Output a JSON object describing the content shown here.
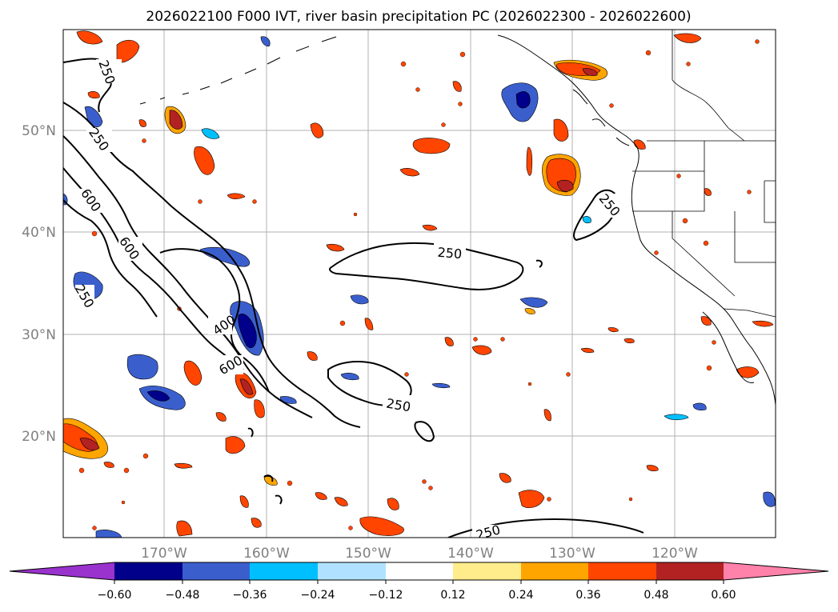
{
  "title": "2026022100 F000 IVT, river basin precipitation PC (2026022300 - 2026022600)",
  "map": {
    "lat_labels": [
      "50°N",
      "40°N",
      "30°N",
      "20°N"
    ],
    "lon_labels": [
      "170°W",
      "160°W",
      "150°W",
      "140°W",
      "130°W",
      "120°W"
    ],
    "contour_labels": [
      "250",
      "250",
      "600",
      "600",
      "400",
      "600",
      "250",
      "250",
      "250",
      "250",
      "250"
    ]
  },
  "colorbar": {
    "tick_labels": [
      "−0.60",
      "−0.48",
      "−0.36",
      "−0.24",
      "−0.12",
      "0.12",
      "0.24",
      "0.36",
      "0.48",
      "0.60"
    ],
    "colors": [
      "#9a32cd",
      "#00008b",
      "#3a5fcd",
      "#00bfff",
      "#b0e2ff",
      "#ffffff",
      "#ffec8b",
      "#ffa500",
      "#ff4500",
      "#b22222",
      "#ff82ab"
    ]
  },
  "palette": {
    "positive_high": "#b22222",
    "positive_mid": "#ff4500",
    "positive_low": "#ffa500",
    "positive_min": "#ffec8b",
    "negative_high": "#00008b",
    "negative_mid": "#3a5fcd",
    "negative_low": "#00bfff",
    "negative_min": "#b0e2ff"
  }
}
